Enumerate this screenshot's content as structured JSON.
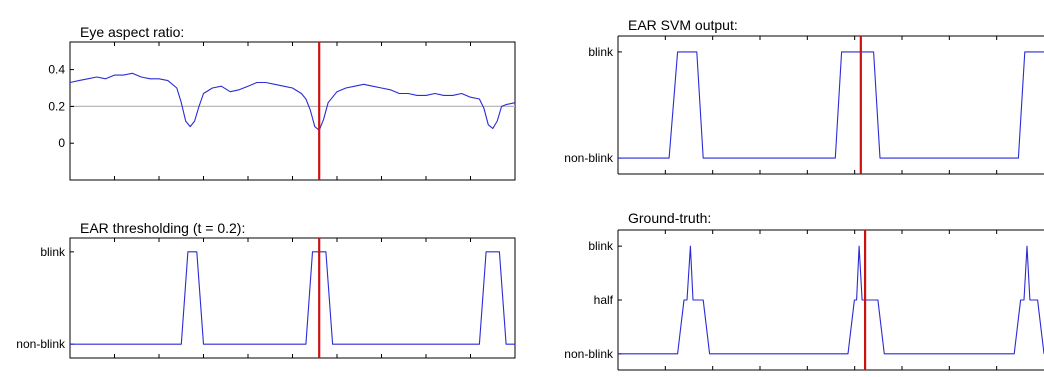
{
  "colors": {
    "signal": "#2b2bd6",
    "marker": "#cc1111",
    "axis": "#000000",
    "threshold": "#b8b8b8",
    "background": "#ffffff"
  },
  "chart_data": [
    {
      "id": "ear",
      "type": "line",
      "title": "Eye aspect ratio:",
      "xlabel": "",
      "ylabel": "",
      "xlim": [
        0,
        100
      ],
      "ylim": [
        -0.2,
        0.55
      ],
      "yticks": [
        0,
        0.2,
        0.4
      ],
      "ytick_labels": [
        "0",
        "0.2",
        "0.4"
      ],
      "threshold": 0.2,
      "marker_x": 56,
      "series": [
        {
          "x": [
            0,
            2,
            4,
            6,
            8,
            10,
            12,
            14,
            16,
            18,
            20,
            22,
            24,
            25,
            26,
            27,
            28,
            29,
            30,
            32,
            34,
            36,
            38,
            40,
            42,
            44,
            46,
            48,
            50,
            52,
            53,
            54,
            55,
            56,
            57,
            58,
            60,
            62,
            64,
            66,
            68,
            70,
            72,
            74,
            76,
            78,
            80,
            82,
            84,
            86,
            88,
            90,
            92,
            93,
            94,
            95,
            96,
            97,
            98,
            100
          ],
          "y": [
            0.33,
            0.34,
            0.35,
            0.36,
            0.35,
            0.37,
            0.37,
            0.38,
            0.36,
            0.35,
            0.35,
            0.34,
            0.3,
            0.22,
            0.12,
            0.09,
            0.12,
            0.2,
            0.27,
            0.3,
            0.31,
            0.28,
            0.29,
            0.31,
            0.33,
            0.33,
            0.32,
            0.31,
            0.3,
            0.27,
            0.24,
            0.18,
            0.09,
            0.07,
            0.13,
            0.22,
            0.28,
            0.3,
            0.31,
            0.32,
            0.31,
            0.3,
            0.29,
            0.27,
            0.27,
            0.26,
            0.26,
            0.27,
            0.26,
            0.26,
            0.27,
            0.25,
            0.24,
            0.19,
            0.1,
            0.08,
            0.12,
            0.2,
            0.21,
            0.22
          ]
        }
      ]
    },
    {
      "id": "thr",
      "type": "line",
      "title": "EAR thresholding (t = 0.2):",
      "xlabel": "",
      "ylabel": "",
      "xlim": [
        0,
        100
      ],
      "ylim": [
        -0.15,
        1.15
      ],
      "yticks": [
        0,
        1
      ],
      "ytick_labels": [
        "non-blink",
        "blink"
      ],
      "marker_x": 56,
      "series": [
        {
          "x": [
            0,
            25,
            26.5,
            28.5,
            30,
            53,
            54.5,
            57.5,
            59,
            92,
            93.5,
            96.5,
            98,
            100
          ],
          "y": [
            0,
            0,
            1,
            1,
            0,
            0,
            1,
            1,
            0,
            0,
            1,
            1,
            0,
            0
          ]
        }
      ]
    },
    {
      "id": "svm",
      "type": "line",
      "title": "EAR SVM output:",
      "xlabel": "",
      "ylabel": "",
      "xlim": [
        0,
        100
      ],
      "ylim": [
        -0.15,
        1.15
      ],
      "yticks": [
        0,
        1
      ],
      "ytick_labels": [
        "non-blink",
        "blink"
      ],
      "marker_x": 57,
      "series": [
        {
          "x": [
            0,
            12,
            14,
            18.5,
            20,
            51,
            52.5,
            60,
            61.5,
            94,
            95.5,
            100
          ],
          "y": [
            0,
            0,
            1,
            1,
            0,
            0,
            1,
            1,
            0,
            0,
            1,
            1
          ]
        }
      ]
    },
    {
      "id": "gt",
      "type": "line",
      "title": "Ground-truth:",
      "xlabel": "",
      "ylabel": "",
      "xlim": [
        0,
        100
      ],
      "ylim": [
        -0.15,
        1.15
      ],
      "yticks": [
        0,
        0.5,
        1
      ],
      "ytick_labels": [
        "non-blink",
        "half",
        "blink"
      ],
      "marker_x": 58,
      "series": [
        {
          "x": [
            0,
            14,
            15.5,
            16.2,
            17,
            17.6,
            18.5,
            20,
            21.5,
            54,
            55.5,
            56,
            56.6,
            57.3,
            58.5,
            59.3,
            61,
            62.5,
            93,
            94.5,
            95.3,
            96,
            96.7,
            97.6,
            98.5,
            100
          ],
          "y": [
            0,
            0,
            0.5,
            0.5,
            1,
            0.5,
            0.5,
            0.5,
            0,
            0,
            0.5,
            0.5,
            1,
            0.5,
            0.5,
            0.5,
            0.5,
            0,
            0,
            0.5,
            0.5,
            1,
            0.5,
            0.5,
            0.5,
            0
          ]
        }
      ]
    }
  ]
}
